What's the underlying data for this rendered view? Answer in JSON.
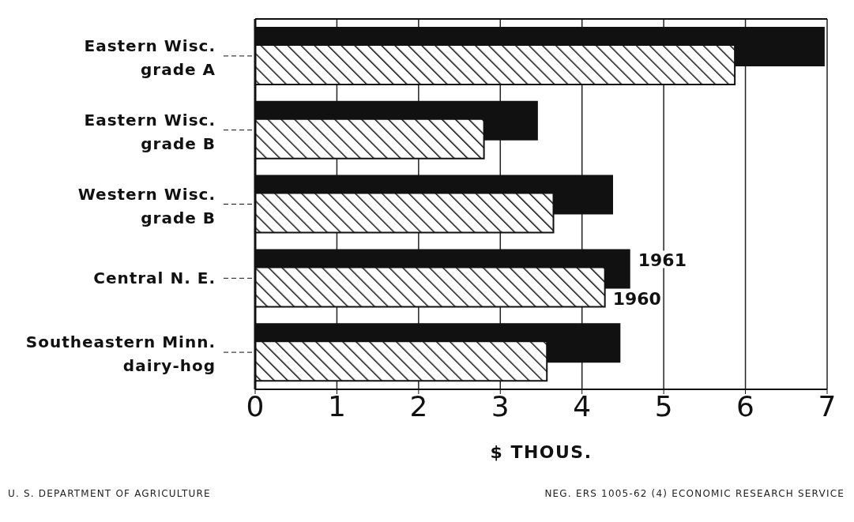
{
  "chart_data": {
    "type": "bar",
    "orientation": "horizontal",
    "categories": [
      "Eastern Wisc. grade A",
      "Eastern Wisc. grade B",
      "Western Wisc. grade B",
      "Central N. E.",
      "Southeastern Minn. dairy-hog"
    ],
    "series": [
      {
        "name": "1961",
        "color": "#111111",
        "values": [
          6.97,
          3.46,
          4.38,
          4.59,
          4.47
        ]
      },
      {
        "name": "1960",
        "color": "#111111",
        "values": [
          5.87,
          2.8,
          3.65,
          4.28,
          3.57
        ]
      }
    ],
    "xlim": [
      0,
      7
    ],
    "xticks": [
      0,
      1,
      2,
      3,
      4,
      5,
      6,
      7
    ],
    "xlabel": "$ THOUS.",
    "grid": "x",
    "annotations": [
      "U. S. DEPARTMENT OF AGRICULTURE",
      "NEG. ERS 1005-62 (4)  ECONOMIC RESEARCH SERVICE"
    ]
  }
}
